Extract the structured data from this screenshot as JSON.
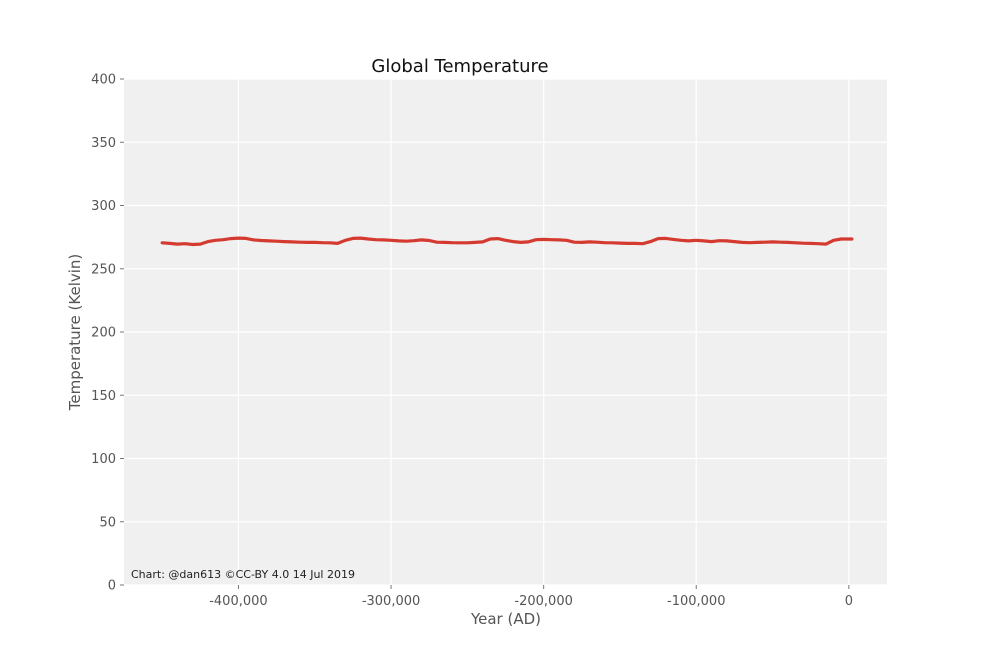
{
  "chart_data": {
    "type": "line",
    "title": "Global Temperature",
    "xlabel": "Year (AD)",
    "ylabel": "Temperature (Kelvin)",
    "credit": "Chart: @dan613 ©CC-BY 4.0  14 Jul 2019",
    "xlim": [
      -475000,
      25000
    ],
    "ylim": [
      0,
      400
    ],
    "xticks": [
      -400000,
      -300000,
      -200000,
      -100000,
      0
    ],
    "xtick_labels": [
      "-400,000",
      "-300,000",
      "-200,000",
      "-100,000",
      "0"
    ],
    "yticks": [
      0,
      50,
      100,
      150,
      200,
      250,
      300,
      350,
      400
    ],
    "ytick_labels": [
      "0",
      "50",
      "100",
      "150",
      "200",
      "250",
      "300",
      "350",
      "400"
    ],
    "grid": true,
    "colors": {
      "line": "#d43a2f",
      "plot_bg": "#f0f0f0",
      "grid": "#ffffff"
    },
    "series": [
      {
        "x": [
          -450000,
          -445000,
          -440000,
          -435000,
          -430000,
          -425000,
          -420000,
          -415000,
          -410000,
          -405000,
          -400000,
          -395000,
          -390000,
          -385000,
          -380000,
          -375000,
          -370000,
          -365000,
          -360000,
          -355000,
          -350000,
          -345000,
          -340000,
          -335000,
          -330000,
          -325000,
          -320000,
          -315000,
          -310000,
          -305000,
          -300000,
          -295000,
          -290000,
          -285000,
          -280000,
          -275000,
          -270000,
          -265000,
          -260000,
          -255000,
          -250000,
          -245000,
          -240000,
          -235000,
          -230000,
          -225000,
          -220000,
          -215000,
          -210000,
          -205000,
          -200000,
          -195000,
          -190000,
          -185000,
          -180000,
          -175000,
          -170000,
          -165000,
          -160000,
          -155000,
          -150000,
          -145000,
          -140000,
          -135000,
          -130000,
          -125000,
          -120000,
          -115000,
          -110000,
          -105000,
          -100000,
          -95000,
          -90000,
          -85000,
          -80000,
          -75000,
          -70000,
          -65000,
          -60000,
          -55000,
          -50000,
          -45000,
          -40000,
          -35000,
          -30000,
          -25000,
          -20000,
          -15000,
          -10000,
          -5000,
          0,
          2000
        ],
        "values": [
          270.5,
          270.0,
          269.5,
          269.8,
          269.2,
          269.5,
          271.5,
          272.5,
          273.0,
          273.8,
          274.2,
          274.0,
          272.8,
          272.3,
          272.0,
          271.8,
          271.5,
          271.2,
          271.0,
          270.8,
          270.8,
          270.6,
          270.5,
          270.0,
          272.5,
          274.0,
          274.2,
          273.5,
          273.0,
          272.8,
          272.5,
          272.0,
          271.8,
          272.2,
          272.8,
          272.3,
          271.0,
          270.8,
          270.6,
          270.5,
          270.5,
          270.8,
          271.2,
          273.5,
          273.8,
          272.5,
          271.5,
          270.8,
          271.2,
          273.0,
          273.2,
          273.0,
          272.8,
          272.5,
          271.0,
          270.8,
          271.2,
          271.0,
          270.6,
          270.5,
          270.3,
          270.0,
          270.0,
          269.8,
          271.5,
          273.8,
          274.0,
          273.2,
          272.5,
          272.0,
          272.5,
          272.0,
          271.5,
          272.2,
          272.0,
          271.5,
          270.8,
          270.6,
          270.8,
          271.0,
          271.2,
          271.0,
          270.8,
          270.5,
          270.2,
          270.0,
          269.8,
          269.5,
          272.5,
          273.5,
          273.5,
          273.5
        ]
      }
    ]
  }
}
